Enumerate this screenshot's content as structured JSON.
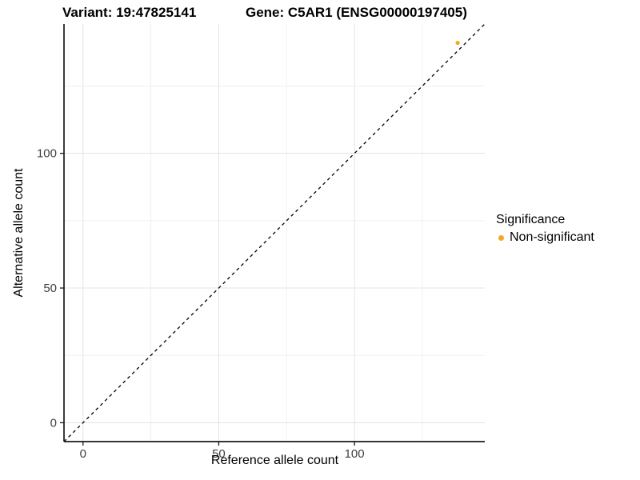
{
  "titles": {
    "variant": "Variant: 19:47825141",
    "gene": "Gene: C5AR1 (ENSG00000197405)"
  },
  "axes": {
    "x_label": "Reference allele count",
    "y_label": "Alternative allele count"
  },
  "legend": {
    "title": "Significance",
    "items": [
      {
        "label": "Non-significant",
        "color": "#F5A623"
      }
    ]
  },
  "colors": {
    "point": "#F5A623",
    "axis_line": "#1a1a1a",
    "tick_label": "#404040",
    "grid_major": "#e3e3e3",
    "grid_minor": "#f0f0f0",
    "reference_line": "#000000",
    "background": "#ffffff"
  },
  "chart_data": {
    "type": "scatter",
    "title": "Variant: 19:47825141 | Gene: C5AR1 (ENSG00000197405)",
    "xlabel": "Reference allele count",
    "ylabel": "Alternative allele count",
    "xlim": [
      -7,
      148
    ],
    "ylim": [
      -7,
      148
    ],
    "x_ticks": [
      0,
      50,
      100
    ],
    "y_ticks": [
      0,
      50,
      100
    ],
    "x_minor_ticks": [
      25,
      75,
      125
    ],
    "y_minor_ticks": [
      25,
      75,
      125
    ],
    "grid": true,
    "legend_position": "right",
    "series": [
      {
        "name": "Non-significant",
        "color": "#F5A623",
        "points": [
          {
            "x": 138,
            "y": 141
          }
        ]
      }
    ],
    "reference_line": {
      "kind": "identity",
      "slope": 1,
      "intercept": 0,
      "style": "dashed"
    }
  }
}
